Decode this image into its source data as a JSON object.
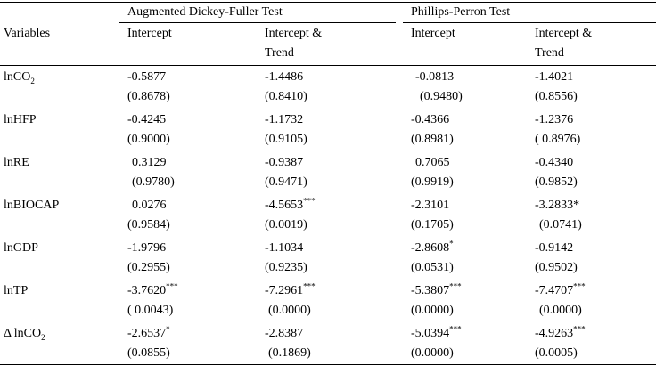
{
  "header": {
    "variables": "Variables",
    "adf": "Augmented Dickey-Fuller Test",
    "pp": "Phillips-Perron Test",
    "intercept": "Intercept",
    "intercept_trend_1": "Intercept &",
    "intercept_trend_2": "Trend"
  },
  "rows": [
    {
      "label": "lnCO",
      "label_sub": "2",
      "vals": [
        "-0.5877",
        "-1.4486",
        "-0.0813",
        "-1.4021"
      ],
      "sups": [
        "",
        "",
        "",
        ""
      ],
      "pvals": [
        "(0.8678)",
        "(0.8410)",
        "(0.9480)",
        "(0.8556)"
      ]
    },
    {
      "label": "lnHFP",
      "label_sub": "",
      "vals": [
        "-0.4245",
        "-1.1732",
        "-0.4366",
        "-1.2376"
      ],
      "sups": [
        "",
        "",
        "",
        ""
      ],
      "pvals": [
        "(0.9000)",
        "(0.9105)",
        "(0.8981)",
        "( 0.8976)"
      ]
    },
    {
      "label": "lnRE",
      "label_sub": "",
      "vals": [
        "0.3129",
        "-0.9387",
        "0.7065",
        "-0.4340"
      ],
      "sups": [
        "",
        "",
        "",
        ""
      ],
      "pvals": [
        "(0.9780)",
        "(0.9471)",
        "(0.9919)",
        "(0.9852)"
      ]
    },
    {
      "label": "lnBIOCAP",
      "label_sub": "",
      "vals": [
        "0.0276",
        "-4.5653",
        "-2.3101",
        "-3.2833*"
      ],
      "sups": [
        "",
        "***",
        "",
        ""
      ],
      "pvals": [
        "(0.9584)",
        "(0.0019)",
        "(0.1705)",
        "(0.0741)"
      ]
    },
    {
      "label": "lnGDP",
      "label_sub": "",
      "vals": [
        "-1.9796",
        "-1.1034",
        "-2.8608",
        "-0.9142"
      ],
      "sups": [
        "",
        "",
        "*",
        ""
      ],
      "pvals": [
        "(0.2955)",
        "(0.9235)",
        "(0.0531)",
        "(0.9502)"
      ]
    },
    {
      "label": "lnTP",
      "label_sub": "",
      "vals": [
        "-3.7620",
        "-7.2961",
        "-5.3807",
        "-7.4707"
      ],
      "sups": [
        "***",
        "***",
        "***",
        "***"
      ],
      "pvals": [
        "( 0.0043)",
        "(0.0000)",
        "(0.0000)",
        "(0.0000)"
      ]
    },
    {
      "label": "Δ lnCO",
      "label_sub": "2",
      "vals": [
        "-2.6537",
        "-2.8387",
        "-5.0394",
        "-4.9263"
      ],
      "sups": [
        "*",
        "",
        "***",
        "***"
      ],
      "pvals": [
        "(0.0855)",
        "(0.1869)",
        "(0.0000)",
        "(0.0005)"
      ]
    }
  ]
}
